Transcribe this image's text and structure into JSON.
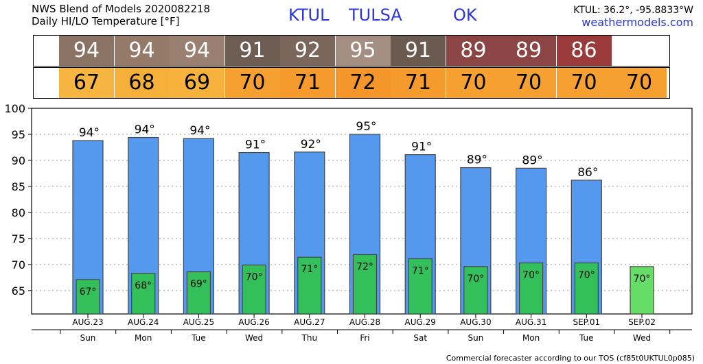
{
  "header": {
    "title_line1": "NWS Blend of Models 2020082218",
    "title_line2": "Daily HI/LO Temperature [°F]",
    "station_id": "KTUL",
    "station_name": "TULSA",
    "state": "OK",
    "coords": "KTUL: 36.2°, -95.8833°W",
    "site": "weathermodels.com"
  },
  "footer": "Commercial forecaster according to our TOS (cf85t0UKTUL0p085)",
  "colors": {
    "hi_bar": "#5599ee",
    "lo_bar": "#33c05a",
    "lo_bar_last": "#66dd66",
    "hi_strip": [
      "#8a7264",
      "#957a6a",
      "#9a8070",
      "#6e5d52",
      "#7a665b",
      "#a48e82",
      "#6a5a50",
      "#8b4544",
      "#8b4544",
      "#9a3a3a"
    ],
    "lo_strip": [
      "#f5b540",
      "#f5b03a",
      "#f6b23c",
      "#f5a030",
      "#f59a2c",
      "#f5962a",
      "#f59a2c",
      "#f5a030",
      "#f5a030",
      "#f5a030",
      "#f5a030"
    ]
  },
  "chart_data": {
    "type": "bar",
    "categories": [
      "AUG.23",
      "AUG.24",
      "AUG.25",
      "AUG.26",
      "AUG.27",
      "AUG.28",
      "AUG.29",
      "AUG.30",
      "AUG.31",
      "SEP.01",
      "SEP.02"
    ],
    "weekdays": [
      "Sun",
      "Mon",
      "Tue",
      "Wed",
      "Thu",
      "Fri",
      "Sat",
      "Sun",
      "Mon",
      "Tue",
      "Wed"
    ],
    "series": [
      {
        "values": [
          94,
          94,
          94,
          91,
          92,
          95,
          91,
          89,
          89,
          86,
          null
        ],
        "bar_values": [
          93.8,
          94.4,
          94.2,
          91.5,
          91.6,
          95.0,
          91.1,
          88.6,
          88.5,
          86.2,
          null
        ]
      },
      {
        "values": [
          67,
          68,
          69,
          70,
          71,
          72,
          71,
          70,
          70,
          70,
          70
        ],
        "bar_values": [
          67.1,
          68.3,
          68.6,
          69.9,
          71.4,
          71.9,
          71.1,
          69.6,
          70.3,
          70.3,
          69.6
        ]
      }
    ],
    "hi_labels": [
      "94°",
      "94°",
      "94°",
      "91°",
      "92°",
      "95°",
      "91°",
      "89°",
      "89°",
      "86°",
      ""
    ],
    "lo_labels": [
      "67°",
      "68°",
      "69°",
      "70°",
      "71°",
      "72°",
      "71°",
      "70°",
      "70°",
      "70°",
      "70°"
    ],
    "ylim": [
      60.5,
      100
    ],
    "yticks": [
      65,
      70,
      75,
      80,
      85,
      90,
      95,
      100
    ],
    "grid": true
  }
}
